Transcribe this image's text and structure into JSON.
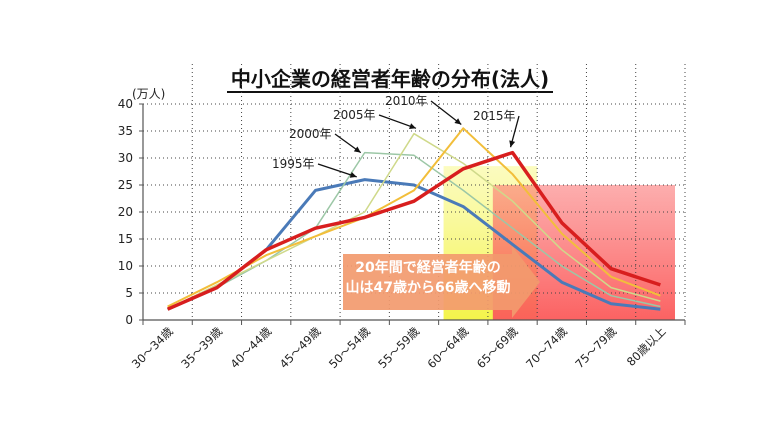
{
  "chart_data": {
    "type": "line",
    "title": "中小企業の経営者年齢の分布(法人)",
    "unit_label": "(万人)",
    "ylim": [
      0,
      40
    ],
    "yticks": [
      0,
      5,
      10,
      15,
      20,
      25,
      30,
      35,
      40
    ],
    "categories": [
      "30～34歳",
      "35～39歳",
      "40～44歳",
      "45～49歳",
      "50～54歳",
      "55～59歳",
      "60～64歳",
      "65～69歳",
      "70～74歳",
      "75～79歳",
      "80歳以上"
    ],
    "series": [
      {
        "name": "1995年",
        "color": "#4a7ab8",
        "width": 3,
        "values": [
          2,
          6,
          13,
          24,
          26,
          25,
          21,
          14,
          7,
          3,
          2
        ]
      },
      {
        "name": "2000年",
        "color": "#9cc7a6",
        "width": 1.5,
        "values": [
          2,
          6,
          11,
          17,
          31,
          30.5,
          24,
          17,
          10,
          4.5,
          2.5
        ]
      },
      {
        "name": "2005年",
        "color": "#cfd98a",
        "width": 1.5,
        "values": [
          2,
          6.5,
          11,
          15.5,
          20,
          34.5,
          29,
          22,
          13,
          6,
          3.5
        ]
      },
      {
        "name": "2010年",
        "color": "#f2be3a",
        "width": 2,
        "values": [
          2.5,
          7,
          12,
          15.5,
          19,
          24,
          35.5,
          27,
          16,
          8,
          4.5
        ]
      },
      {
        "name": "2015年",
        "color": "#d81e1e",
        "width": 3.5,
        "values": [
          2,
          6,
          13,
          17,
          19,
          22,
          28,
          31,
          18,
          9.5,
          6.5
        ]
      }
    ],
    "annotation": {
      "line1": "20年間で経営者年齢の",
      "line2": "山は47歳から66歳へ移動"
    },
    "grid": true
  }
}
